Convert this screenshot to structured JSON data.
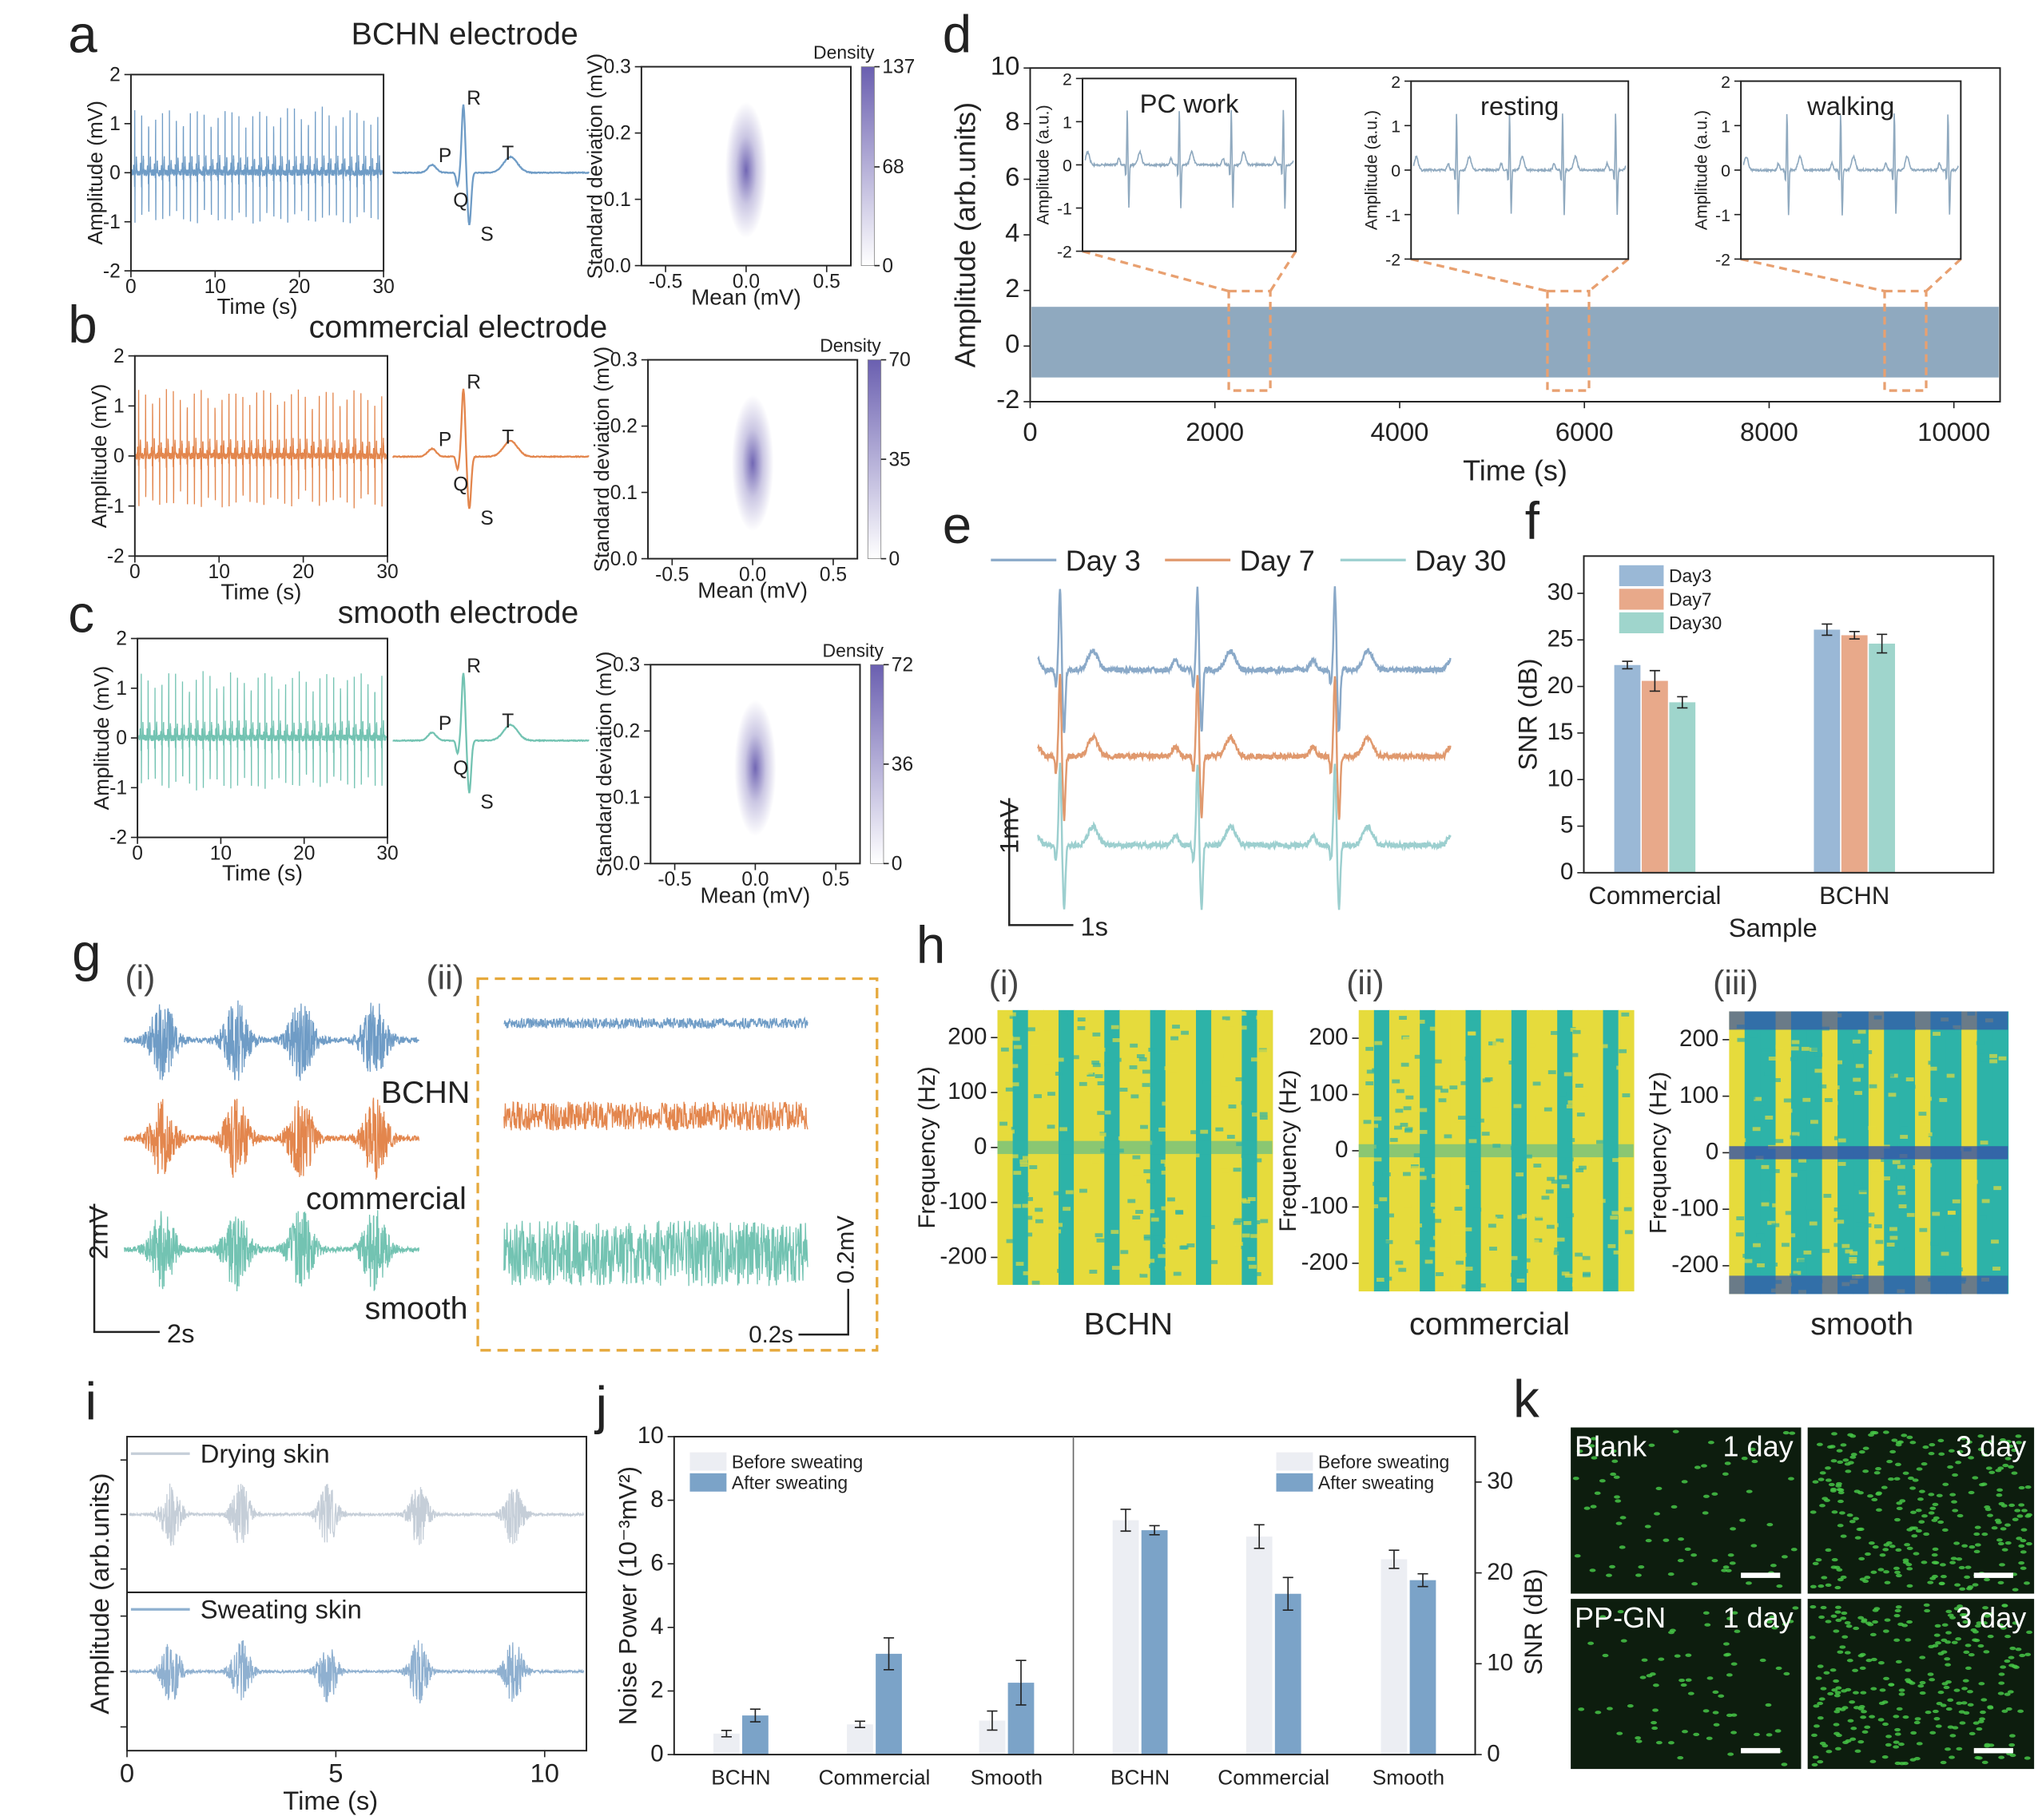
{
  "chart_data": [
    {
      "type": "ecg",
      "label": "a",
      "title": "BCHN electrode",
      "x_label": "Time (s)",
      "y_label": "Amplitude (mV)",
      "xlim": [
        0,
        30
      ],
      "xticks": [
        0,
        10,
        20,
        30
      ],
      "ylim": [
        -2,
        2
      ],
      "yticks": [
        -2,
        -1,
        0,
        1,
        2
      ],
      "color": "#6f9cc6",
      "annotations": [
        "P",
        "Q",
        "R",
        "S",
        "T"
      ]
    },
    {
      "type": "heatmap",
      "x_label": "Mean (mV)",
      "y_label": "Standard deviation (mV)",
      "xlim": [
        -0.65,
        0.65
      ],
      "xticks": [
        -0.5,
        {
          "value": 0,
          "label": "0.0"
        },
        0.5
      ],
      "ylim": [
        0,
        0.3
      ],
      "yticks": [
        {
          "value": 0,
          "label": "0.0"
        },
        0.1,
        0.2,
        0.3
      ],
      "colorbar_label": "Density",
      "colorbar_lim": [
        0,
        137
      ],
      "colorbar_ticks": [
        0,
        68,
        137
      ],
      "color": "#6a5fb0"
    },
    {
      "type": "ecg",
      "label": "b",
      "title": "commercial electrode",
      "x_label": "Time (s)",
      "y_label": "Amplitude (mV)",
      "xlim": [
        0,
        30
      ],
      "xticks": [
        0,
        10,
        20,
        30
      ],
      "ylim": [
        -2,
        2
      ],
      "yticks": [
        -2,
        -1,
        0,
        1,
        2
      ],
      "color": "#e3864d",
      "annotations": [
        "P",
        "Q",
        "R",
        "S",
        "T"
      ]
    },
    {
      "type": "heatmap",
      "x_label": "Mean (mV)",
      "y_label": "Standard deviation (mV)",
      "xlim": [
        -0.65,
        0.65
      ],
      "xticks": [
        -0.5,
        {
          "value": 0,
          "label": "0.0"
        },
        0.5
      ],
      "ylim": [
        0,
        0.3
      ],
      "yticks": [
        {
          "value": 0,
          "label": "0.0"
        },
        0.1,
        0.2,
        0.3
      ],
      "colorbar_label": "Density",
      "colorbar_lim": [
        0,
        70
      ],
      "colorbar_ticks": [
        0,
        35,
        70
      ],
      "color": "#6a5fb0"
    },
    {
      "type": "ecg",
      "label": "c",
      "title": "smooth electrode",
      "x_label": "Time (s)",
      "y_label": "Amplitude (mV)",
      "xlim": [
        0,
        30
      ],
      "xticks": [
        0,
        10,
        20,
        30
      ],
      "ylim": [
        -2,
        2
      ],
      "yticks": [
        -2,
        -1,
        0,
        1,
        2
      ],
      "color": "#73c3b2",
      "annotations": [
        "P",
        "Q",
        "R",
        "S",
        "T"
      ]
    },
    {
      "type": "heatmap",
      "x_label": "Mean (mV)",
      "y_label": "Standard deviation (mV)",
      "xlim": [
        -0.65,
        0.65
      ],
      "xticks": [
        -0.5,
        {
          "value": 0,
          "label": "0.0"
        },
        0.5
      ],
      "ylim": [
        0,
        0.3
      ],
      "yticks": [
        {
          "value": 0,
          "label": "0.0"
        },
        0.1,
        0.2,
        0.3
      ],
      "colorbar_label": "Density",
      "colorbar_lim": [
        0,
        72
      ],
      "colorbar_ticks": [
        0,
        36,
        72
      ],
      "color": "#6a5fb0"
    },
    {
      "type": "ecg-long",
      "label": "d",
      "x_label": "Time (s)",
      "y_label": "Amplitude (arb.units)",
      "xlim": [
        0,
        10500
      ],
      "xticks": [
        0,
        2000,
        4000,
        6000,
        8000,
        10000
      ],
      "ylim": [
        -2,
        10
      ],
      "yticks": [
        -2,
        0,
        2,
        4,
        6,
        8,
        10
      ],
      "color": "#8fa9bf",
      "highlight_color": "#e8a070",
      "insets": [
        {
          "title": "PC work",
          "y_label": "Amplitude (a.u.)",
          "ylim": [
            -2,
            2
          ],
          "yticks": [
            -2,
            -1,
            0,
            1,
            2
          ],
          "window": [
            2150,
            2600
          ]
        },
        {
          "title": "resting",
          "y_label": "Amplitude (a.u.)",
          "ylim": [
            -2,
            2
          ],
          "yticks": [
            -2,
            -1,
            0,
            1,
            2
          ],
          "window": [
            5600,
            6050
          ]
        },
        {
          "title": "walking",
          "y_label": "Amplitude (a.u.)",
          "ylim": [
            -2,
            2
          ],
          "yticks": [
            -2,
            -1,
            0,
            1,
            2
          ],
          "window": [
            9250,
            9700
          ]
        }
      ]
    },
    {
      "type": "ecg-overlay",
      "label": "e",
      "series": [
        {
          "name": "Day 3",
          "color": "#8aa9c8"
        },
        {
          "name": "Day 7",
          "color": "#e0996e"
        },
        {
          "name": "Day 30",
          "color": "#9ccfcf"
        }
      ],
      "scale_labels": [
        "1mV",
        "1s"
      ]
    },
    {
      "type": "bar",
      "label": "f",
      "x_label": "Sample",
      "y_label": "SNR (dB)",
      "categories": [
        "Commercial",
        "BCHN"
      ],
      "ylim": [
        0,
        34
      ],
      "yticks": [
        0,
        5,
        10,
        15,
        20,
        25,
        30
      ],
      "series": [
        {
          "name": "Day3",
          "color": "#9ab8d6",
          "values": [
            22.3,
            26.1
          ],
          "errors": [
            0.4,
            0.6
          ]
        },
        {
          "name": "Day7",
          "color": "#e8a98a",
          "values": [
            20.6,
            25.5
          ],
          "errors": [
            1.1,
            0.4
          ]
        },
        {
          "name": "Day30",
          "color": "#9fd5cc",
          "values": [
            18.3,
            24.6
          ],
          "errors": [
            0.6,
            1.0
          ]
        }
      ]
    },
    {
      "type": "emg-compare",
      "label": "g",
      "panels": [
        "(i)",
        "(ii)"
      ],
      "series": [
        {
          "name": "BCHN",
          "color": "#6f9cc6"
        },
        {
          "name": "commercial",
          "color": "#e3864d"
        },
        {
          "name": "smooth",
          "color": "#73c3b2"
        }
      ],
      "scale_labels": [
        "2mV",
        "2s",
        "0.2mV",
        "0.2s"
      ],
      "box_color": "#e6a93c"
    },
    {
      "type": "spectrogram",
      "label": "h",
      "y_label": "Frequency (Hz)",
      "ylim": [
        -250,
        250
      ],
      "yticks": [
        200,
        100,
        0,
        -100,
        -200
      ],
      "colormap": [
        "#3552a8",
        "#2db3a8",
        "#e6db3c"
      ],
      "panels": [
        {
          "label": "(i)",
          "name": "BCHN"
        },
        {
          "label": "(ii)",
          "name": "commercial"
        },
        {
          "label": "(iii)",
          "name": "smooth"
        }
      ]
    },
    {
      "type": "emg-pair",
      "label": "i",
      "x_label": "Time (s)",
      "y_label": "Amplitude (arb.units)",
      "xlim": [
        0,
        11
      ],
      "xticks": [
        0,
        5,
        10
      ],
      "series": [
        {
          "name": "Drying skin",
          "color": "#c5ced8"
        },
        {
          "name": "Sweating skin",
          "color": "#8fb0d0"
        }
      ]
    },
    {
      "type": "bar-dual",
      "label": "j",
      "y_label": "Noise Power (10⁻³mV²)",
      "y2_label": "SNR (dB)",
      "categories": [
        "BCHN",
        "Commercial",
        "Smooth",
        "BCHN",
        "Commercial",
        "Smooth"
      ],
      "ylim": [
        0,
        10
      ],
      "yticks": [
        0,
        2,
        4,
        6,
        8,
        10
      ],
      "y2lim": [
        0,
        35
      ],
      "y2ticks": [
        0,
        10,
        20,
        30
      ],
      "series": [
        {
          "name": "Before sweating",
          "color": "#eceef3",
          "values": [
            0.66,
            0.95,
            1.07,
            null,
            null,
            null
          ],
          "errors": [
            0.1,
            0.1,
            0.3,
            null,
            null,
            null
          ]
        },
        {
          "name": "After sweating",
          "color": "#7ba3c8",
          "values": [
            1.23,
            3.17,
            2.26,
            null,
            null,
            null
          ],
          "errors": [
            0.2,
            0.5,
            0.7,
            null,
            null,
            null
          ]
        },
        {
          "name": "Before sweating",
          "color": "#eceef3",
          "axis": "y2",
          "values": [
            null,
            null,
            null,
            25.8,
            24.0,
            21.5
          ],
          "errors": [
            null,
            null,
            null,
            1.2,
            1.3,
            1.0
          ]
        },
        {
          "name": "After sweating",
          "color": "#7ba3c8",
          "axis": "y2",
          "values": [
            null,
            null,
            null,
            24.7,
            17.7,
            19.2
          ],
          "errors": [
            null,
            null,
            null,
            0.5,
            1.8,
            0.7
          ]
        }
      ]
    },
    {
      "type": "image-grid",
      "label": "k",
      "color": "#46c646",
      "rows": [
        {
          "name": "Blank",
          "cells": [
            "1 day",
            "3 day"
          ]
        },
        {
          "name": "PP-GN",
          "cells": [
            "1 day",
            "3 day"
          ]
        }
      ]
    }
  ]
}
